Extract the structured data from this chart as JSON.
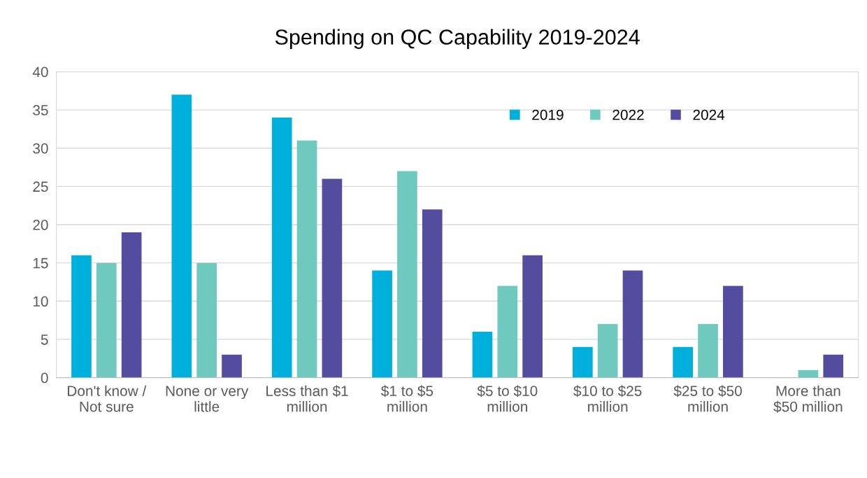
{
  "chart_data": {
    "type": "bar",
    "title": "Spending on QC Capability 2019-2024",
    "categories": [
      "Don't know /\nNot sure",
      "None or very\nlittle",
      "Less than $1\nmillion",
      "$1 to $5\nmillion",
      "$5 to $10\nmillion",
      "$10 to $25\nmillion",
      "$25 to $50\nmillion",
      "More than\n$50 million"
    ],
    "series": [
      {
        "name": "2019",
        "color": "#00b0dc",
        "values": [
          16,
          37,
          34,
          14,
          6,
          4,
          4,
          0
        ]
      },
      {
        "name": "2022",
        "color": "#6fc9bf",
        "values": [
          15,
          15,
          31,
          27,
          12,
          7,
          7,
          1
        ]
      },
      {
        "name": "2024",
        "color": "#544c9e",
        "values": [
          19,
          3,
          26,
          22,
          16,
          14,
          12,
          3
        ]
      }
    ],
    "ylim": [
      0,
      40
    ],
    "yticks": [
      0,
      5,
      10,
      15,
      20,
      25,
      30,
      35,
      40
    ],
    "grid": "y",
    "legend": "top right"
  }
}
